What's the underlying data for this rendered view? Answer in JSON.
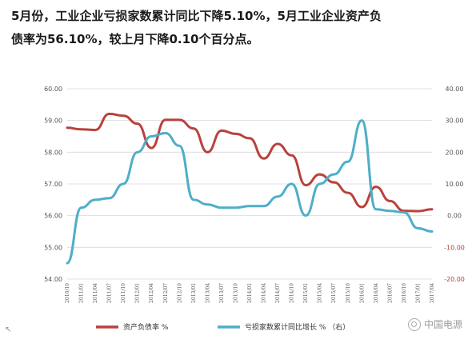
{
  "headline": {
    "line1": "5月份，工业企业亏损家数累计同比下降5.10%，5月工业企业资产负",
    "line2": "债率为56.10%，较上月下降0.10个百分点。"
  },
  "watermark": {
    "text": "中国电源",
    "icon": "wechat-icon"
  },
  "chart_data": {
    "type": "line",
    "x": [
      "2010/10",
      "2011/01",
      "2011/04",
      "2011/07",
      "2011/10",
      "2012/01",
      "2012/04",
      "2012/07",
      "2012/10",
      "2013/01",
      "2013/04",
      "2013/07",
      "2013/10",
      "2014/01",
      "2014/04",
      "2014/07",
      "2014/10",
      "2015/01",
      "2015/04",
      "2015/07",
      "2015/10",
      "2016/01",
      "2016/04",
      "2016/07",
      "2016/10",
      "2017/01",
      "2017/04"
    ],
    "x_tick_labels": [
      "2010/10",
      "2011/01",
      "2011/04",
      "2011/07",
      "2011/10",
      "2012/01",
      "2012/04",
      "2012/07",
      "2012/10",
      "2013/01",
      "2013/04",
      "2013/07",
      "2013/10",
      "2014/01",
      "2014/04",
      "2014/07",
      "2014/10",
      "2015/01",
      "2015/04",
      "2015/07",
      "2015/10",
      "2016/01",
      "2016/04",
      "2016/07",
      "2016/10",
      "2017/01",
      "2017/04"
    ],
    "left_axis": {
      "ticks": [
        "60.00",
        "59.00",
        "58.00",
        "57.00",
        "56.00",
        "55.00",
        "54.00"
      ],
      "ylim": [
        54,
        60
      ]
    },
    "right_axis": {
      "ticks": [
        "40.00",
        "30.00",
        "20.00",
        "10.00",
        "0.00",
        "-10.00",
        "-20.00"
      ],
      "negative_color": "#c0392b",
      "ylim": [
        -20,
        40
      ]
    },
    "series": [
      {
        "name": "资产负债率 %",
        "axis": "left",
        "color": "#b8423c",
        "values": [
          58.77,
          58.72,
          58.7,
          59.21,
          59.15,
          58.9,
          58.13,
          59.02,
          59.02,
          58.75,
          58.0,
          58.68,
          58.58,
          58.44,
          57.8,
          58.26,
          57.9,
          56.96,
          57.3,
          57.05,
          56.72,
          56.27,
          56.91,
          56.46,
          56.15,
          56.14,
          56.2
        ]
      },
      {
        "name": "亏损家数累计同比增长 % （右）",
        "axis": "right",
        "color": "#4eaec8",
        "values": [
          -15.0,
          2.5,
          5.0,
          5.5,
          10.0,
          20.0,
          25.0,
          26.0,
          22.0,
          5.0,
          3.5,
          2.5,
          2.5,
          3.0,
          3.0,
          6.0,
          10.0,
          0.0,
          10.0,
          13.0,
          17.0,
          30.0,
          2.0,
          1.5,
          1.0,
          -4.0,
          -5.0
        ]
      }
    ],
    "legend_position": "bottom",
    "grid": true
  }
}
